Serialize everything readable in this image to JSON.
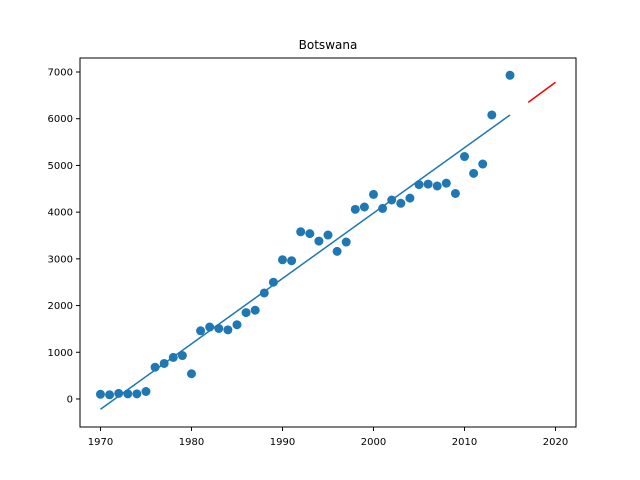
{
  "chart_data": {
    "type": "scatter",
    "title": "Botswana",
    "xlabel": "",
    "ylabel": "",
    "xlim": [
      1967.75,
      2022.25
    ],
    "ylim": [
      -600,
      7300
    ],
    "xticks": [
      1970,
      1980,
      1990,
      2000,
      2010,
      2020
    ],
    "yticks": [
      0,
      1000,
      2000,
      3000,
      4000,
      5000,
      6000,
      7000
    ],
    "grid": false,
    "legend": "none",
    "colors": {
      "points": "#1f77b4",
      "fit": "#1f77b4",
      "projection": "#ff0000"
    },
    "series": [
      {
        "kind": "points",
        "x": [
          1970,
          1971,
          1972,
          1973,
          1974,
          1975,
          1976,
          1977,
          1978,
          1979,
          1980,
          1981,
          1982,
          1983,
          1984,
          1985,
          1986,
          1987,
          1988,
          1989,
          1990,
          1991,
          1992,
          1993,
          1994,
          1995,
          1996,
          1997,
          1998,
          1999,
          2000,
          2001,
          2002,
          2003,
          2004,
          2005,
          2006,
          2007,
          2008,
          2009,
          2010,
          2011,
          2012,
          2013,
          2015
        ],
        "y": [
          100,
          90,
          120,
          110,
          110,
          160,
          680,
          760,
          890,
          930,
          540,
          1460,
          1540,
          1510,
          1480,
          1590,
          1850,
          1900,
          2270,
          2500,
          2980,
          2960,
          3580,
          3540,
          3380,
          3510,
          3160,
          3360,
          4060,
          4110,
          4380,
          4080,
          4260,
          4190,
          4300,
          4590,
          4600,
          4560,
          4620,
          4400,
          5190,
          4830,
          5030,
          6080,
          6930
        ]
      },
      {
        "kind": "fit-line",
        "x": [
          1970,
          2015
        ],
        "y": [
          -220,
          6080
        ]
      },
      {
        "kind": "projection-line",
        "x": [
          2017,
          2020
        ],
        "y": [
          6350,
          6780
        ]
      }
    ]
  }
}
